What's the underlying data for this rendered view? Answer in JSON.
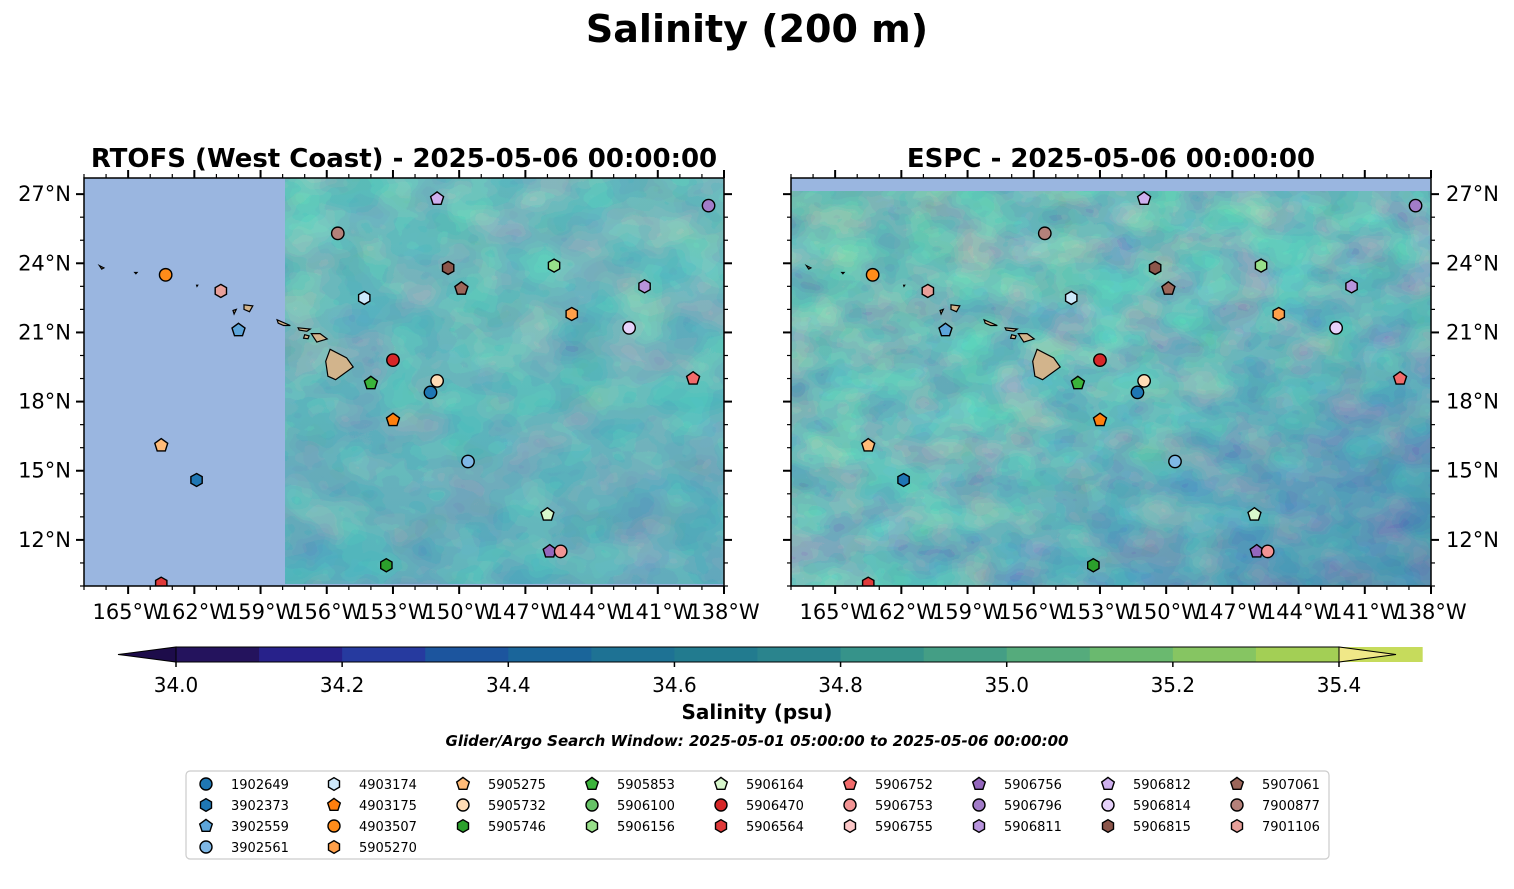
{
  "figure": {
    "title": "Salinity (200 m)",
    "note": "Glider/Argo Search Window: 2025-05-01 05:00:00 to 2025-05-06 00:00:00"
  },
  "chart_data": [
    {
      "type": "heatmap",
      "title": "RTOFS (West Coast) - 2025-05-06 00:00:00",
      "variable": "Salinity (psu)",
      "depth": "200 m",
      "xlim": [
        -167,
        -138
      ],
      "ylim": [
        10,
        27.7
      ],
      "x_ticks": [
        "165°W",
        "162°W",
        "159°W",
        "156°W",
        "153°W",
        "150°W",
        "147°W",
        "144°W",
        "141°W",
        "138°W"
      ],
      "y_ticks": [
        "12°N",
        "15°N",
        "18°N",
        "21°N",
        "24°N",
        "27°N"
      ],
      "coverage_note": "model domain begins at 157.9°W; area west shown as no-data",
      "grid": false
    },
    {
      "type": "heatmap",
      "title": "ESPC - 2025-05-06 00:00:00",
      "variable": "Salinity (psu)",
      "depth": "200 m",
      "xlim": [
        -167,
        -138
      ],
      "ylim": [
        10,
        27.7
      ],
      "x_ticks": [
        "165°W",
        "162°W",
        "159°W",
        "156°W",
        "153°W",
        "150°W",
        "147°W",
        "144°W",
        "141°W",
        "138°W"
      ],
      "y_ticks": [
        "12°N",
        "15°N",
        "18°N",
        "21°N",
        "24°N",
        "27°N"
      ],
      "grid": false
    }
  ],
  "colorbar": {
    "label": "Salinity (psu)",
    "min": 34.0,
    "max": 35.4,
    "step": 0.1,
    "extend": "both",
    "ticks": [
      "34.0",
      "34.2",
      "34.4",
      "34.6",
      "34.8",
      "35.0",
      "35.2",
      "35.4"
    ],
    "colors": [
      "#24135d",
      "#27218a",
      "#263a9f",
      "#1c559e",
      "#1a659a",
      "#1e7294",
      "#227b8f",
      "#2a848d",
      "#36938a",
      "#449e85",
      "#55ab7c",
      "#6ab96f",
      "#86c562",
      "#a3cf55",
      "#c6db5c"
    ],
    "under_color": "#1d0c4a",
    "over_color": "#f0e888"
  },
  "land_color": "#d2b48c",
  "nodata_color": "#9ab6e0",
  "legend": {
    "placement": "bottom",
    "items": [
      {
        "id": "1902649",
        "marker": "circle",
        "color": "#1f77b4"
      },
      {
        "id": "3902373",
        "marker": "hexagon",
        "color": "#1f77b4"
      },
      {
        "id": "3902559",
        "marker": "pentagon",
        "color": "#5da5da"
      },
      {
        "id": "3902561",
        "marker": "circle",
        "color": "#7fb8e6"
      },
      {
        "id": "4903174",
        "marker": "hexagon",
        "color": "#cde8fa"
      },
      {
        "id": "4903175",
        "marker": "pentagon",
        "color": "#ff7f0e"
      },
      {
        "id": "4903507",
        "marker": "circle",
        "color": "#ff8c1a"
      },
      {
        "id": "5905270",
        "marker": "hexagon",
        "color": "#ffa04a"
      },
      {
        "id": "5905275",
        "marker": "pentagon",
        "color": "#ffbb78"
      },
      {
        "id": "5905732",
        "marker": "circle",
        "color": "#ffdcb5"
      },
      {
        "id": "5905746",
        "marker": "hexagon",
        "color": "#2ca02c"
      },
      {
        "id": "5905853",
        "marker": "pentagon",
        "color": "#3bb33b"
      },
      {
        "id": "5906100",
        "marker": "circle",
        "color": "#66c266"
      },
      {
        "id": "5906156",
        "marker": "hexagon",
        "color": "#98df8a"
      },
      {
        "id": "5906164",
        "marker": "pentagon",
        "color": "#d8f7cc"
      },
      {
        "id": "5906470",
        "marker": "circle",
        "color": "#d62728"
      },
      {
        "id": "5906564",
        "marker": "hexagon",
        "color": "#e03a3a"
      },
      {
        "id": "5906752",
        "marker": "pentagon",
        "color": "#f26b6b"
      },
      {
        "id": "5906753",
        "marker": "circle",
        "color": "#f29494"
      },
      {
        "id": "5906755",
        "marker": "hexagon",
        "color": "#fcc8c8"
      },
      {
        "id": "5906756",
        "marker": "pentagon",
        "color": "#9467bd"
      },
      {
        "id": "5906796",
        "marker": "circle",
        "color": "#a27cc8"
      },
      {
        "id": "5906811",
        "marker": "hexagon",
        "color": "#b894dc"
      },
      {
        "id": "5906812",
        "marker": "pentagon",
        "color": "#cfb0ee"
      },
      {
        "id": "5906814",
        "marker": "circle",
        "color": "#e6d2fa"
      },
      {
        "id": "5906815",
        "marker": "hexagon",
        "color": "#8c564b"
      },
      {
        "id": "5907061",
        "marker": "pentagon",
        "color": "#9c665a"
      },
      {
        "id": "7900877",
        "marker": "circle",
        "color": "#b5817a"
      },
      {
        "id": "7901106",
        "marker": "hexagon",
        "color": "#e8a09a"
      }
    ]
  },
  "floats": [
    {
      "id": "3902373",
      "lon": -161.9,
      "lat": 14.6
    },
    {
      "id": "5905275",
      "lon": -163.5,
      "lat": 16.1
    },
    {
      "id": "4903507",
      "lon": -163.3,
      "lat": 23.5
    },
    {
      "id": "7901106",
      "lon": -160.8,
      "lat": 22.8
    },
    {
      "id": "3902559",
      "lon": -160.0,
      "lat": 21.1
    },
    {
      "id": "7900877",
      "lon": -155.5,
      "lat": 25.3
    },
    {
      "id": "4903174",
      "lon": -154.3,
      "lat": 22.5
    },
    {
      "id": "5906470",
      "lon": -153.0,
      "lat": 19.8
    },
    {
      "id": "5905853",
      "lon": -154.0,
      "lat": 18.8
    },
    {
      "id": "4903175",
      "lon": -153.0,
      "lat": 17.2
    },
    {
      "id": "5905746",
      "lon": -153.3,
      "lat": 10.9
    },
    {
      "id": "5905732",
      "lon": -151.0,
      "lat": 18.9
    },
    {
      "id": "1902649",
      "lon": -151.3,
      "lat": 18.4
    },
    {
      "id": "3902561",
      "lon": -149.6,
      "lat": 15.4
    },
    {
      "id": "5906812",
      "lon": -151.0,
      "lat": 26.8
    },
    {
      "id": "5906815",
      "lon": -150.5,
      "lat": 23.8
    },
    {
      "id": "5907061",
      "lon": -149.9,
      "lat": 22.9
    },
    {
      "id": "5906156",
      "lon": -145.7,
      "lat": 23.9
    },
    {
      "id": "5905270",
      "lon": -144.9,
      "lat": 21.8
    },
    {
      "id": "5906811",
      "lon": -141.6,
      "lat": 23.0
    },
    {
      "id": "5906814",
      "lon": -142.3,
      "lat": 21.2
    },
    {
      "id": "5906796",
      "lon": -138.7,
      "lat": 26.5
    },
    {
      "id": "5906752",
      "lon": -139.4,
      "lat": 19.0
    },
    {
      "id": "5906164",
      "lon": -146.0,
      "lat": 13.1
    },
    {
      "id": "5906756",
      "lon": -145.9,
      "lat": 11.5
    },
    {
      "id": "5906753",
      "lon": -145.4,
      "lat": 11.5
    },
    {
      "id": "5906564",
      "lon": -163.5,
      "lat": 10.1
    }
  ]
}
